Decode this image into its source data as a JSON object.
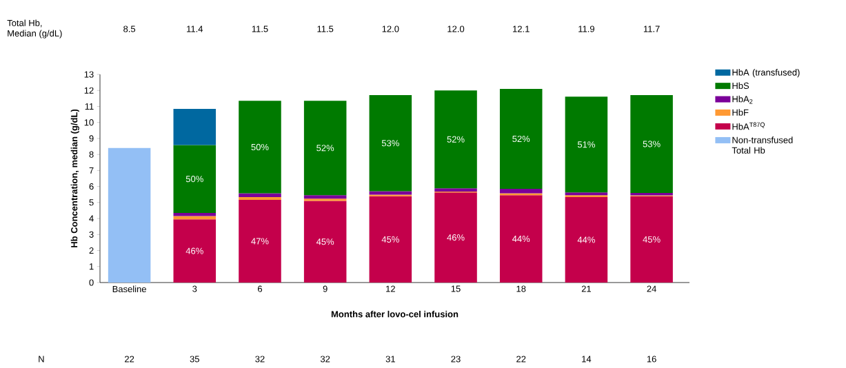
{
  "chart_data": {
    "type": "bar",
    "stacked": true,
    "xlabel": "Months after lovo-cel infusion",
    "ylabel": "Hb Concentration, median (g/dL)",
    "categories": [
      "Baseline",
      "3",
      "6",
      "9",
      "12",
      "15",
      "18",
      "21",
      "24"
    ],
    "ylim": [
      0,
      13
    ],
    "yticks": [
      0,
      1,
      2,
      3,
      4,
      5,
      6,
      7,
      8,
      9,
      10,
      11,
      12,
      13
    ],
    "legend": "right",
    "series": [
      {
        "name": "Non-transfused Total Hb",
        "color": "#93bff5",
        "values": [
          8.4,
          null,
          null,
          null,
          null,
          null,
          null,
          null,
          null
        ]
      },
      {
        "name": "HbA$^{T87Q}$",
        "color": "#c4004b",
        "values": [
          null,
          3.95,
          5.17,
          5.1,
          5.39,
          5.63,
          5.46,
          5.34,
          5.39
        ]
      },
      {
        "name": "HbF",
        "color": "#ff9933",
        "values": [
          null,
          0.2,
          0.17,
          0.14,
          0.1,
          0.05,
          0.11,
          0.12,
          0.05
        ]
      },
      {
        "name": "HbA$_{2}$",
        "color": "#7b0099",
        "values": [
          null,
          0.2,
          0.23,
          0.22,
          0.21,
          0.21,
          0.28,
          0.17,
          0.16
        ]
      },
      {
        "name": "HbS",
        "color": "#007a00",
        "values": [
          null,
          4.24,
          5.78,
          5.89,
          6.01,
          6.11,
          6.25,
          5.98,
          6.11
        ]
      },
      {
        "name": "HbA (transfused)",
        "color": "#0068a0",
        "values": [
          null,
          2.26,
          null,
          null,
          null,
          null,
          null,
          null,
          null
        ]
      }
    ],
    "annotations": [
      "Total Hb, Median (g/dL)",
      "8.5",
      "11.4",
      "11.5",
      "11.5",
      "12.0",
      "12.0",
      "12.1",
      "11.9",
      "11.7",
      "N",
      "22",
      "35",
      "32",
      "32",
      "31",
      "23",
      "22",
      "14",
      "16",
      "46%",
      "47%",
      "45%",
      "45%",
      "46%",
      "44%",
      "44%",
      "45%",
      "50%",
      "50%",
      "52%",
      "53%",
      "52%",
      "52%",
      "51%",
      "53%"
    ]
  }
}
